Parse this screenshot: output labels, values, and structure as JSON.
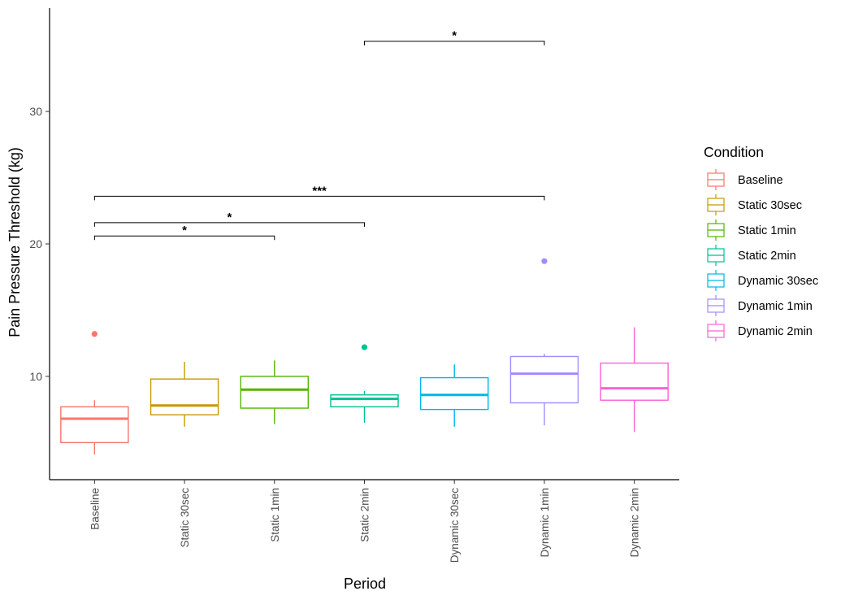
{
  "chart_data": {
    "type": "box",
    "xlabel": "Period",
    "ylabel": "Pain Pressure Threshold (kg)",
    "ylim": [
      2.2,
      37.8
    ],
    "yticks": [
      10,
      20,
      30
    ],
    "categories": [
      "Baseline",
      "Static 30sec",
      "Static 1min",
      "Static 2min",
      "Dynamic 30sec",
      "Dynamic 1min",
      "Dynamic 2min"
    ],
    "boxes": [
      {
        "category": "Baseline",
        "min": 4.1,
        "q1": 5.0,
        "median": 6.8,
        "q3": 7.7,
        "max": 8.2,
        "outliers": [
          13.2
        ],
        "color": "#F8766D"
      },
      {
        "category": "Static 30sec",
        "min": 6.2,
        "q1": 7.1,
        "median": 7.8,
        "q3": 9.8,
        "max": 11.1,
        "outliers": [],
        "color": "#C49A00"
      },
      {
        "category": "Static 1min",
        "min": 6.4,
        "q1": 7.6,
        "median": 9.0,
        "q3": 10.0,
        "max": 11.2,
        "outliers": [],
        "color": "#53B400"
      },
      {
        "category": "Static 2min",
        "min": 6.5,
        "q1": 7.7,
        "median": 8.3,
        "q3": 8.6,
        "max": 8.9,
        "outliers": [
          12.2
        ],
        "color": "#00C094"
      },
      {
        "category": "Dynamic 30sec",
        "min": 6.2,
        "q1": 7.5,
        "median": 8.6,
        "q3": 9.9,
        "max": 10.9,
        "outliers": [],
        "color": "#00B6EB"
      },
      {
        "category": "Dynamic 1min",
        "min": 6.3,
        "q1": 8.0,
        "median": 10.2,
        "q3": 11.5,
        "max": 11.7,
        "outliers": [
          18.7
        ],
        "color": "#A58AFF"
      },
      {
        "category": "Dynamic 2min",
        "min": 5.8,
        "q1": 8.2,
        "median": 9.1,
        "q3": 11.0,
        "max": 13.7,
        "outliers": [],
        "color": "#FB61D7"
      }
    ],
    "significance": [
      {
        "from": "Baseline",
        "to": "Static 1min",
        "label": "*",
        "y": 20.6
      },
      {
        "from": "Baseline",
        "to": "Static 2min",
        "label": "*",
        "y": 21.6
      },
      {
        "from": "Baseline",
        "to": "Dynamic 1min",
        "label": "***",
        "y": 23.6
      },
      {
        "from": "Static 2min",
        "to": "Dynamic 1min",
        "label": "*",
        "y": 35.3
      }
    ],
    "legend": {
      "title": "Condition",
      "position": "right",
      "entries": [
        "Baseline",
        "Static 30sec",
        "Static 1min",
        "Static 2min",
        "Dynamic 30sec",
        "Dynamic 1min",
        "Dynamic 2min"
      ]
    },
    "grid": false
  }
}
